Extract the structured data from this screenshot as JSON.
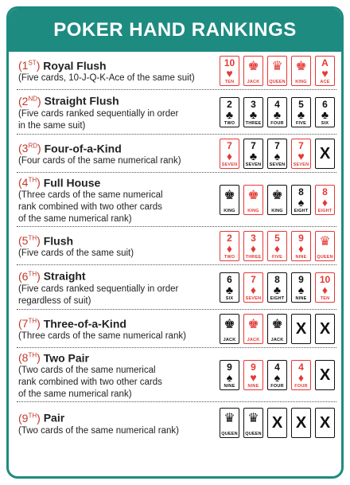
{
  "title": "POKER HAND RANKINGS",
  "hands": [
    {
      "rank_num": "1",
      "rank_suffix": "ST",
      "name": "Royal Flush",
      "desc": [
        "(Five cards, 10-J-Q-K-Ace of the same suit)"
      ],
      "cards": [
        {
          "v": "10",
          "s": "♥",
          "l": "TEN",
          "c": "red"
        },
        {
          "v": "",
          "s": "",
          "l": "JACK",
          "c": "red",
          "f": "♚"
        },
        {
          "v": "",
          "s": "",
          "l": "QUEEN",
          "c": "red",
          "f": "♛"
        },
        {
          "v": "",
          "s": "",
          "l": "KING",
          "c": "red",
          "f": "♚"
        },
        {
          "v": "A",
          "s": "♥",
          "l": "ACE",
          "c": "red"
        }
      ]
    },
    {
      "rank_num": "2",
      "rank_suffix": "ND",
      "name": "Straight Flush",
      "desc": [
        "(Five cards ranked sequentially in order",
        "in the same suit)"
      ],
      "cards": [
        {
          "v": "2",
          "s": "♣",
          "l": "TWO",
          "c": "black"
        },
        {
          "v": "3",
          "s": "♣",
          "l": "THREE",
          "c": "black"
        },
        {
          "v": "4",
          "s": "♣",
          "l": "FOUR",
          "c": "black"
        },
        {
          "v": "5",
          "s": "♣",
          "l": "FIVE",
          "c": "black"
        },
        {
          "v": "6",
          "s": "♣",
          "l": "SIX",
          "c": "black"
        }
      ]
    },
    {
      "rank_num": "3",
      "rank_suffix": "RD",
      "name": "Four-of-a-Kind",
      "desc": [
        "(Four cards of the same numerical rank)"
      ],
      "cards": [
        {
          "v": "7",
          "s": "♦",
          "l": "SEVEN",
          "c": "red"
        },
        {
          "v": "7",
          "s": "♣",
          "l": "SEVEN",
          "c": "black"
        },
        {
          "v": "7",
          "s": "♠",
          "l": "SEVEN",
          "c": "black"
        },
        {
          "v": "7",
          "s": "♥",
          "l": "SEVEN",
          "c": "red"
        },
        {
          "x": "X"
        }
      ]
    },
    {
      "rank_num": "4",
      "rank_suffix": "TH",
      "name": "Full House",
      "desc": [
        "(Three cards of the same numerical",
        "rank combined with two other cards",
        "of the same numerical rank)"
      ],
      "cards": [
        {
          "v": "",
          "s": "",
          "l": "KING",
          "c": "black",
          "f": "♚"
        },
        {
          "v": "",
          "s": "",
          "l": "KING",
          "c": "red",
          "f": "♚"
        },
        {
          "v": "",
          "s": "",
          "l": "KING",
          "c": "black",
          "f": "♚"
        },
        {
          "v": "8",
          "s": "♠",
          "l": "EIGHT",
          "c": "black"
        },
        {
          "v": "8",
          "s": "♦",
          "l": "EIGHT",
          "c": "red"
        }
      ]
    },
    {
      "rank_num": "5",
      "rank_suffix": "TH",
      "name": "Flush",
      "desc": [
        "(Five cards of the same suit)"
      ],
      "cards": [
        {
          "v": "2",
          "s": "♦",
          "l": "TWO",
          "c": "red"
        },
        {
          "v": "3",
          "s": "♦",
          "l": "THREE",
          "c": "red"
        },
        {
          "v": "5",
          "s": "♦",
          "l": "FIVE",
          "c": "red"
        },
        {
          "v": "9",
          "s": "♦",
          "l": "NINE",
          "c": "red"
        },
        {
          "v": "",
          "s": "",
          "l": "QUEEN",
          "c": "red",
          "f": "♛"
        }
      ]
    },
    {
      "rank_num": "6",
      "rank_suffix": "TH",
      "name": "Straight",
      "desc": [
        "(Five cards ranked sequentially in order",
        "regardless of suit)"
      ],
      "cards": [
        {
          "v": "6",
          "s": "♣",
          "l": "SIX",
          "c": "black"
        },
        {
          "v": "7",
          "s": "♦",
          "l": "SEVEN",
          "c": "red"
        },
        {
          "v": "8",
          "s": "♣",
          "l": "EIGHT",
          "c": "black"
        },
        {
          "v": "9",
          "s": "♠",
          "l": "NINE",
          "c": "black"
        },
        {
          "v": "10",
          "s": "♦",
          "l": "TEN",
          "c": "red"
        }
      ]
    },
    {
      "rank_num": "7",
      "rank_suffix": "TH",
      "name": "Three-of-a-Kind",
      "desc": [
        "(Three cards of the same numerical rank)"
      ],
      "cards": [
        {
          "v": "",
          "s": "",
          "l": "JACK",
          "c": "black",
          "f": "♚"
        },
        {
          "v": "",
          "s": "",
          "l": "JACK",
          "c": "red",
          "f": "♚"
        },
        {
          "v": "",
          "s": "",
          "l": "JACK",
          "c": "black",
          "f": "♚"
        },
        {
          "x": "X"
        },
        {
          "x": "X"
        }
      ]
    },
    {
      "rank_num": "8",
      "rank_suffix": "TH",
      "name": "Two Pair",
      "desc": [
        "(Two cards of the same numerical",
        "rank combined with two other cards",
        "of the same numerical rank)"
      ],
      "cards": [
        {
          "v": "9",
          "s": "♠",
          "l": "NINE",
          "c": "black"
        },
        {
          "v": "9",
          "s": "♥",
          "l": "NINE",
          "c": "red"
        },
        {
          "v": "4",
          "s": "♠",
          "l": "FOUR",
          "c": "black"
        },
        {
          "v": "4",
          "s": "♦",
          "l": "FOUR",
          "c": "red"
        },
        {
          "x": "X"
        }
      ]
    },
    {
      "rank_num": "9",
      "rank_suffix": "TH",
      "name": "Pair",
      "desc": [
        "(Two cards of the same numerical rank)"
      ],
      "cards": [
        {
          "v": "",
          "s": "",
          "l": "QUEEN",
          "c": "black",
          "f": "♛"
        },
        {
          "v": "",
          "s": "",
          "l": "QUEEN",
          "c": "black",
          "f": "♛"
        },
        {
          "x": "X"
        },
        {
          "x": "X"
        },
        {
          "x": "X"
        }
      ]
    }
  ],
  "colors": {
    "header": "#1e8b81",
    "red": "#e53935",
    "rank": "#c0392b"
  }
}
